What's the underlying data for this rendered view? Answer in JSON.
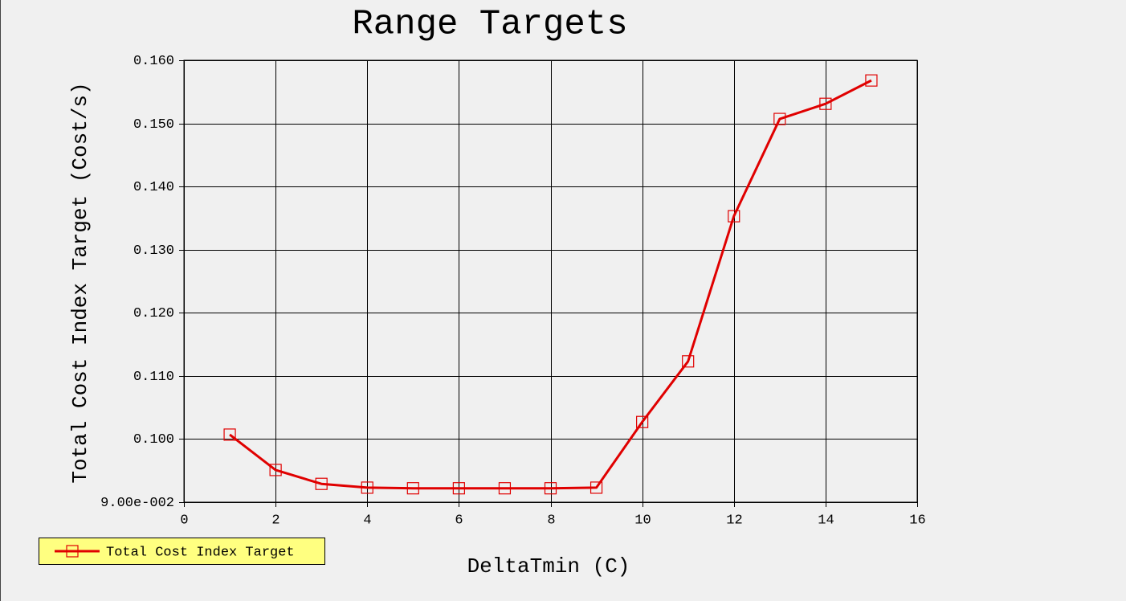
{
  "chart_data": {
    "type": "line",
    "title": "Range Targets",
    "x_label": "DeltaTmin (C)",
    "y_label": "Total Cost Index Target (Cost/s)",
    "x": [
      1,
      2,
      3,
      4,
      5,
      6,
      7,
      8,
      9,
      10,
      11,
      12,
      13,
      14,
      15
    ],
    "series": [
      {
        "name": "Total Cost Index Target",
        "color": "#e00000",
        "values": [
          0.1007,
          0.0951,
          0.0929,
          0.0923,
          0.0922,
          0.0922,
          0.0922,
          0.0922,
          0.0923,
          0.1027,
          0.1123,
          0.1353,
          0.1507,
          0.1531,
          0.1568
        ]
      }
    ],
    "xlim": [
      0,
      16
    ],
    "xticks": [
      0,
      2,
      4,
      6,
      8,
      10,
      12,
      14,
      16
    ],
    "ylim": [
      0.09,
      0.16
    ],
    "yticks": [
      {
        "value": 0.09,
        "label": "9.00e-002"
      },
      {
        "value": 0.1,
        "label": "0.100"
      },
      {
        "value": 0.11,
        "label": "0.110"
      },
      {
        "value": 0.12,
        "label": "0.120"
      },
      {
        "value": 0.13,
        "label": "0.130"
      },
      {
        "value": 0.14,
        "label": "0.140"
      },
      {
        "value": 0.15,
        "label": "0.150"
      },
      {
        "value": 0.16,
        "label": "0.160"
      }
    ],
    "grid": true,
    "marker": "square"
  }
}
